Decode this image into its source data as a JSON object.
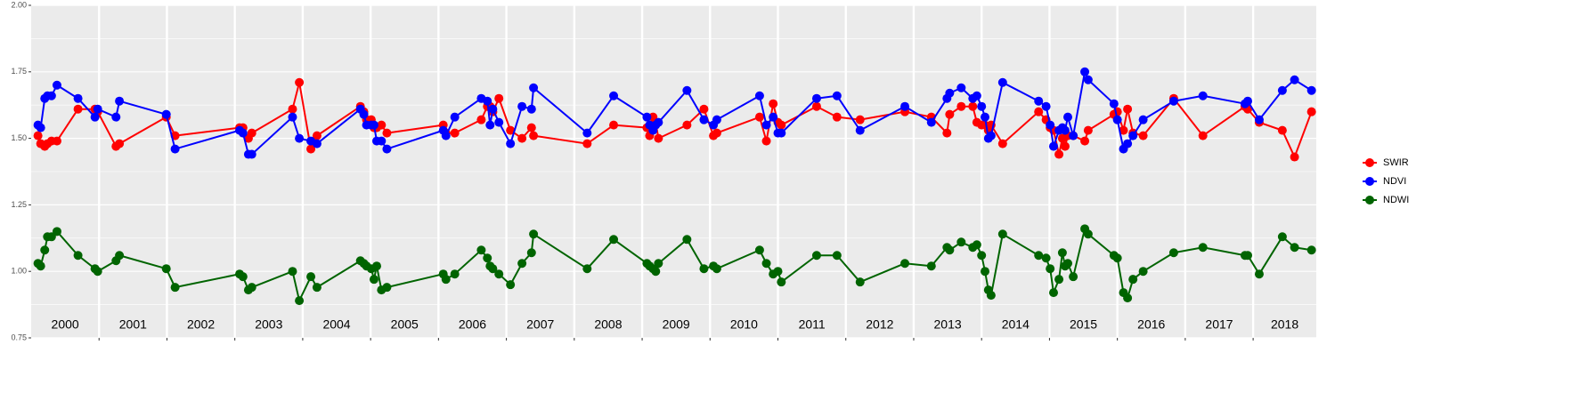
{
  "chart_data": {
    "type": "line",
    "x": [
      2000.1,
      2000.14,
      2000.2,
      2000.24,
      2000.3,
      2000.38,
      2000.69,
      2000.94,
      2000.98,
      2001.25,
      2001.3,
      2001.99,
      2002.12,
      2003.07,
      2003.12,
      2003.2,
      2003.25,
      2003.85,
      2003.95,
      2004.12,
      2004.21,
      2004.85,
      2004.9,
      2004.94,
      2005.01,
      2005.05,
      2005.09,
      2005.16,
      2005.24,
      2006.07,
      2006.11,
      2006.24,
      2006.63,
      2006.72,
      2006.76,
      2006.8,
      2006.89,
      2007.06,
      2007.23,
      2007.37,
      2007.4,
      2008.19,
      2008.58,
      2009.07,
      2009.11,
      2009.16,
      2009.2,
      2009.24,
      2009.66,
      2009.91,
      2010.05,
      2010.1,
      2010.73,
      2010.83,
      2010.93,
      2011.0,
      2011.05,
      2011.57,
      2011.87,
      2012.21,
      2012.87,
      2013.26,
      2013.49,
      2013.53,
      2013.7,
      2013.87,
      2013.93,
      2014.0,
      2014.05,
      2014.1,
      2014.14,
      2014.31,
      2014.84,
      2014.95,
      2015.01,
      2015.06,
      2015.14,
      2015.19,
      2015.23,
      2015.27,
      2015.35,
      2015.52,
      2015.57,
      2015.95,
      2016.0,
      2016.09,
      2016.15,
      2016.23,
      2016.38,
      2016.83,
      2017.26,
      2017.88,
      2017.92,
      2018.09,
      2018.43,
      2018.61,
      2018.86
    ],
    "series": [
      {
        "name": "SWIR",
        "color": "#ff0000",
        "values": [
          1.51,
          1.48,
          1.47,
          1.48,
          1.49,
          1.49,
          1.61,
          1.61,
          1.6,
          1.47,
          1.48,
          1.58,
          1.51,
          1.54,
          1.54,
          1.5,
          1.52,
          1.61,
          1.71,
          1.46,
          1.51,
          1.62,
          1.6,
          1.57,
          1.57,
          1.54,
          1.54,
          1.55,
          1.52,
          1.55,
          1.52,
          1.52,
          1.57,
          1.62,
          1.62,
          1.6,
          1.65,
          1.53,
          1.5,
          1.54,
          1.51,
          1.48,
          1.55,
          1.54,
          1.51,
          1.58,
          1.56,
          1.5,
          1.55,
          1.61,
          1.51,
          1.52,
          1.58,
          1.49,
          1.63,
          1.56,
          1.55,
          1.62,
          1.58,
          1.57,
          1.6,
          1.58,
          1.52,
          1.59,
          1.62,
          1.62,
          1.56,
          1.55,
          1.55,
          1.53,
          1.55,
          1.48,
          1.6,
          1.57,
          1.54,
          1.53,
          1.44,
          1.5,
          1.47,
          1.51,
          1.51,
          1.49,
          1.53,
          1.59,
          1.6,
          1.53,
          1.61,
          1.52,
          1.51,
          1.65,
          1.51,
          1.62,
          1.61,
          1.56,
          1.53,
          1.43,
          1.6
        ]
      },
      {
        "name": "NDVI",
        "color": "#0000ff",
        "values": [
          1.55,
          1.54,
          1.65,
          1.66,
          1.66,
          1.7,
          1.65,
          1.58,
          1.61,
          1.58,
          1.64,
          1.59,
          1.46,
          1.53,
          1.52,
          1.44,
          1.44,
          1.58,
          1.5,
          1.49,
          1.48,
          1.61,
          1.59,
          1.55,
          1.55,
          1.55,
          1.49,
          1.49,
          1.46,
          1.53,
          1.51,
          1.58,
          1.65,
          1.64,
          1.55,
          1.61,
          1.56,
          1.48,
          1.62,
          1.61,
          1.69,
          1.52,
          1.66,
          1.58,
          1.55,
          1.53,
          1.55,
          1.56,
          1.68,
          1.57,
          1.55,
          1.57,
          1.66,
          1.55,
          1.58,
          1.52,
          1.52,
          1.65,
          1.66,
          1.53,
          1.62,
          1.56,
          1.65,
          1.67,
          1.69,
          1.65,
          1.66,
          1.62,
          1.58,
          1.5,
          1.51,
          1.71,
          1.64,
          1.62,
          1.55,
          1.47,
          1.53,
          1.54,
          1.53,
          1.58,
          1.51,
          1.75,
          1.72,
          1.63,
          1.57,
          1.46,
          1.48,
          1.51,
          1.57,
          1.64,
          1.66,
          1.63,
          1.64,
          1.57,
          1.68,
          1.72,
          1.68
        ]
      },
      {
        "name": "NDWI",
        "color": "#006400",
        "values": [
          1.03,
          1.02,
          1.08,
          1.13,
          1.13,
          1.15,
          1.06,
          1.01,
          1.0,
          1.04,
          1.06,
          1.01,
          0.94,
          0.99,
          0.98,
          0.93,
          0.94,
          1.0,
          0.89,
          0.98,
          0.94,
          1.04,
          1.03,
          1.02,
          1.01,
          0.97,
          1.02,
          0.93,
          0.94,
          0.99,
          0.97,
          0.99,
          1.08,
          1.05,
          1.02,
          1.01,
          0.99,
          0.95,
          1.03,
          1.07,
          1.14,
          1.01,
          1.12,
          1.03,
          1.02,
          1.01,
          1.0,
          1.03,
          1.12,
          1.01,
          1.02,
          1.01,
          1.08,
          1.03,
          0.99,
          1.0,
          0.96,
          1.06,
          1.06,
          0.96,
          1.03,
          1.02,
          1.09,
          1.08,
          1.11,
          1.09,
          1.1,
          1.06,
          1.0,
          0.93,
          0.91,
          1.14,
          1.06,
          1.05,
          1.01,
          0.92,
          0.97,
          1.07,
          1.02,
          1.03,
          0.98,
          1.16,
          1.14,
          1.06,
          1.05,
          0.92,
          0.9,
          0.97,
          1.0,
          1.07,
          1.09,
          1.06,
          1.06,
          0.99,
          1.13,
          1.09,
          1.08
        ]
      }
    ],
    "xlim": [
      2000,
      2018.93
    ],
    "xticks": [
      2001,
      2002,
      2003,
      2004,
      2005,
      2006,
      2007,
      2008,
      2009,
      2010,
      2011,
      2012,
      2013,
      2014,
      2015,
      2016,
      2017,
      2018
    ],
    "year_labels": [
      2000,
      2001,
      2002,
      2003,
      2004,
      2005,
      2006,
      2007,
      2008,
      2009,
      2010,
      2011,
      2012,
      2013,
      2014,
      2015,
      2016,
      2017,
      2018
    ],
    "ylim": [
      0.75,
      2.0
    ],
    "yticks": [
      0.75,
      {
        "value": 1.0,
        "label": "1.00"
      },
      1.25,
      {
        "value": 1.5,
        "label": "1.50"
      },
      1.75,
      {
        "value": 2.0,
        "label": "2.00"
      }
    ],
    "grid": true,
    "legend": "right"
  }
}
